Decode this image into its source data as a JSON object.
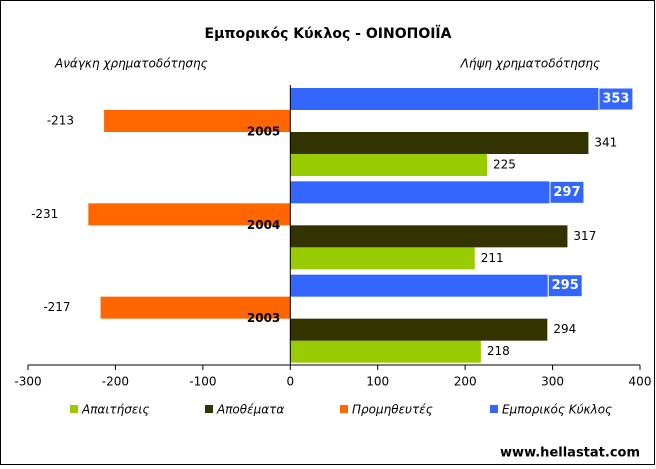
{
  "chart_data": {
    "type": "hbar",
    "title": "Εμπορικός Κύκλος - ΟΙΝΟΠΟΙΪΑ",
    "left_label": "Ανάγκη χρηματοδότησης",
    "right_label": "Λήψη χρηματοδότησης",
    "source": "www.hellastat.com",
    "categories": [
      "2005",
      "2004",
      "2003"
    ],
    "series": [
      {
        "name": "Απαιτήσεις",
        "color": "#99cc00",
        "values": [
          225,
          211,
          218
        ]
      },
      {
        "name": "Αποθέματα",
        "color": "#333300",
        "values": [
          341,
          317,
          294
        ]
      },
      {
        "name": "Προμηθευτές",
        "color": "#ff6600",
        "values": [
          -213,
          -231,
          -217
        ]
      },
      {
        "name": "Εμπορικός Κύκλος",
        "color": "#3366ff",
        "values": [
          353,
          297,
          295
        ]
      }
    ],
    "xlim": [
      -300,
      400
    ],
    "xticks": [
      -300,
      -200,
      -100,
      0,
      100,
      200,
      300,
      400
    ]
  }
}
